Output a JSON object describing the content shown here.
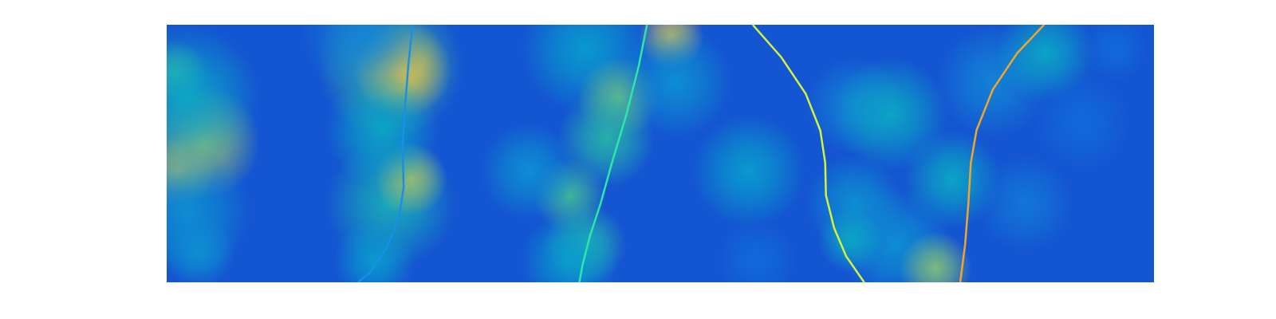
{
  "chart_data": {
    "type": "heatmap",
    "tick_labels": false,
    "xlim": [
      0,
      4
    ],
    "ylim": [
      0,
      1
    ],
    "clim": [
      0,
      1
    ],
    "background": 0.12,
    "blobs": [
      {
        "x": 0.148,
        "y": 0.543,
        "r": 0.231,
        "value": 0.75
      },
      {
        "x": 0.049,
        "y": 0.432,
        "r": 0.148,
        "value": 0.8
      },
      {
        "x": 0.033,
        "y": 0.811,
        "r": 0.132,
        "value": 0.6
      },
      {
        "x": 0.132,
        "y": 0.117,
        "r": 0.148,
        "value": 0.35
      },
      {
        "x": 0.082,
        "y": 0.716,
        "r": 0.297,
        "value": 0.45
      },
      {
        "x": 0.082,
        "y": 0.274,
        "r": 0.264,
        "value": 0.35
      },
      {
        "x": 0.907,
        "y": 0.842,
        "r": 0.297,
        "value": 0.6
      },
      {
        "x": 0.956,
        "y": 0.826,
        "r": 0.198,
        "value": 0.9
      },
      {
        "x": 0.907,
        "y": 0.306,
        "r": 0.264,
        "value": 0.5
      },
      {
        "x": 0.989,
        "y": 0.401,
        "r": 0.148,
        "value": 0.75
      },
      {
        "x": 0.874,
        "y": 0.59,
        "r": 0.231,
        "value": 0.45
      },
      {
        "x": 0.841,
        "y": 0.085,
        "r": 0.165,
        "value": 0.4
      },
      {
        "x": 0.808,
        "y": 0.968,
        "r": 0.264,
        "value": 0.3
      },
      {
        "x": 1.698,
        "y": 0.905,
        "r": 0.264,
        "value": 0.4
      },
      {
        "x": 2.045,
        "y": 0.953,
        "r": 0.132,
        "value": 0.85
      },
      {
        "x": 1.83,
        "y": 0.716,
        "r": 0.165,
        "value": 0.65
      },
      {
        "x": 1.781,
        "y": 0.558,
        "r": 0.198,
        "value": 0.55
      },
      {
        "x": 1.632,
        "y": 0.338,
        "r": 0.148,
        "value": 0.6
      },
      {
        "x": 1.698,
        "y": 0.148,
        "r": 0.165,
        "value": 0.55
      },
      {
        "x": 1.467,
        "y": 0.432,
        "r": 0.198,
        "value": 0.35
      },
      {
        "x": 1.632,
        "y": 0.085,
        "r": 0.198,
        "value": 0.4
      },
      {
        "x": 2.061,
        "y": 0.779,
        "r": 0.231,
        "value": 0.35
      },
      {
        "x": 2.358,
        "y": 0.432,
        "r": 0.231,
        "value": 0.4
      },
      {
        "x": 2.391,
        "y": 0.085,
        "r": 0.165,
        "value": 0.2
      },
      {
        "x": 2.786,
        "y": 0.685,
        "r": 0.198,
        "value": 0.3
      },
      {
        "x": 2.935,
        "y": 0.653,
        "r": 0.231,
        "value": 0.45
      },
      {
        "x": 3.182,
        "y": 0.401,
        "r": 0.198,
        "value": 0.45
      },
      {
        "x": 2.786,
        "y": 0.306,
        "r": 0.198,
        "value": 0.35
      },
      {
        "x": 2.951,
        "y": 0.148,
        "r": 0.231,
        "value": 0.35
      },
      {
        "x": 2.77,
        "y": 0.164,
        "r": 0.132,
        "value": 0.45
      },
      {
        "x": 3.116,
        "y": 0.054,
        "r": 0.148,
        "value": 0.7
      },
      {
        "x": 3.347,
        "y": 0.779,
        "r": 0.231,
        "value": 0.3
      },
      {
        "x": 3.561,
        "y": 0.89,
        "r": 0.198,
        "value": 0.45
      },
      {
        "x": 3.71,
        "y": 0.621,
        "r": 0.198,
        "value": 0.2
      },
      {
        "x": 3.479,
        "y": 0.306,
        "r": 0.198,
        "value": 0.25
      },
      {
        "x": 3.842,
        "y": 0.905,
        "r": 0.132,
        "value": 0.2
      }
    ],
    "series": [
      {
        "color": "#1a8fe6",
        "x": [
          0.996,
          0.979,
          0.966,
          0.956,
          0.96,
          0.94,
          0.89,
          0.824,
          0.775
        ],
        "values": [
          1,
          0.842,
          0.685,
          0.527,
          0.369,
          0.243,
          0.132,
          0.038,
          0
        ]
      },
      {
        "color": "#2ee6a8",
        "x": [
          1.946,
          1.913,
          1.863,
          1.804,
          1.758,
          1.715,
          1.685,
          1.672
        ],
        "values": [
          1,
          0.842,
          0.653,
          0.464,
          0.306,
          0.18,
          0.069,
          0
        ]
      },
      {
        "color": "#d2f23c",
        "x": [
          2.374,
          2.49,
          2.589,
          2.648,
          2.668,
          2.671,
          2.704,
          2.753,
          2.826
        ],
        "values": [
          1,
          0.874,
          0.732,
          0.59,
          0.464,
          0.338,
          0.211,
          0.101,
          0
        ]
      },
      {
        "color": "#f2a52a",
        "x": [
          3.555,
          3.446,
          3.347,
          3.281,
          3.258,
          3.248,
          3.235,
          3.215
        ],
        "values": [
          1,
          0.89,
          0.748,
          0.59,
          0.464,
          0.306,
          0.148,
          0
        ]
      }
    ]
  }
}
